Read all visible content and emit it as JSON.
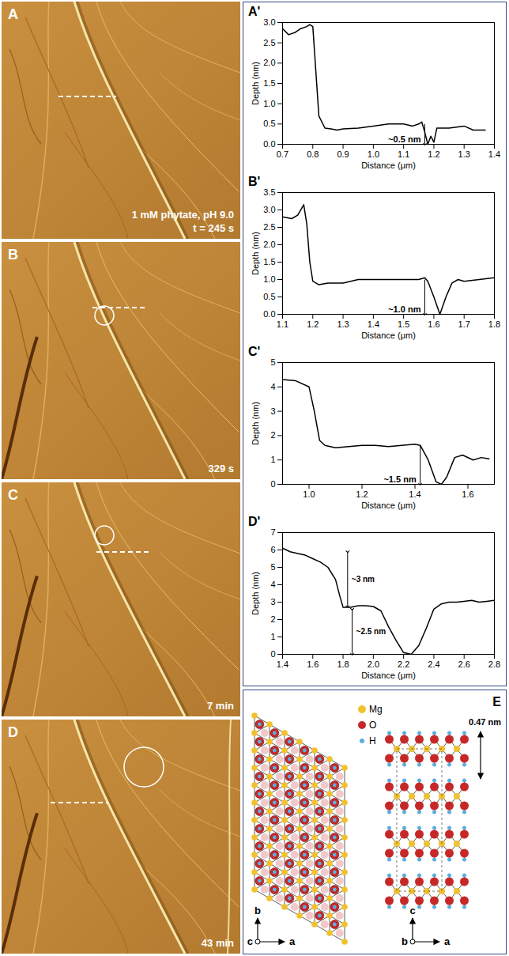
{
  "images": [
    {
      "label": "A",
      "caption": [
        "1 mM phytate, pH 9.0",
        "t = 245 s"
      ]
    },
    {
      "label": "B",
      "caption": [
        "329 s"
      ]
    },
    {
      "label": "C",
      "caption": [
        "7 min"
      ]
    },
    {
      "label": "D",
      "caption": [
        "43 min"
      ]
    }
  ],
  "chart_data": [
    {
      "type": "line",
      "panel": "A'",
      "x_label": "Distance (μm)",
      "y_label": "Depth (nm)",
      "color": "#000000",
      "x": [
        0.7,
        0.72,
        0.74,
        0.76,
        0.78,
        0.79,
        0.8,
        0.81,
        0.82,
        0.84,
        0.86,
        0.88,
        0.9,
        0.95,
        1.0,
        1.05,
        1.1,
        1.13,
        1.15,
        1.16,
        1.17,
        1.18,
        1.19,
        1.2,
        1.21,
        1.25,
        1.3,
        1.33,
        1.37
      ],
      "values": [
        2.85,
        2.7,
        2.75,
        2.85,
        2.9,
        2.95,
        2.9,
        1.8,
        0.7,
        0.4,
        0.38,
        0.35,
        0.38,
        0.4,
        0.45,
        0.5,
        0.5,
        0.45,
        0.5,
        0.55,
        0.3,
        0.0,
        0.2,
        0.05,
        0.4,
        0.4,
        0.45,
        0.35,
        0.35
      ],
      "xlim": [
        0.7,
        1.4
      ],
      "xticks": [
        0.7,
        0.8,
        0.9,
        {
          "value": 1,
          "label": "1.0"
        },
        1.1,
        1.2,
        1.3,
        1.4
      ],
      "ylim": [
        0,
        3
      ],
      "yticks": [
        {
          "value": 0,
          "label": "0.0"
        },
        0.5,
        {
          "value": 1,
          "label": "1.0"
        },
        1.5,
        {
          "value": 2,
          "label": "2.0"
        },
        2.5,
        {
          "value": 3,
          "label": "3.0"
        }
      ],
      "annotations": [
        {
          "text": "~0.5 nm",
          "x": 1.17,
          "y1": 0.5,
          "y2": 0,
          "marker": "arrow"
        }
      ]
    },
    {
      "type": "line",
      "panel": "B'",
      "x_label": "Distance (μm)",
      "y_label": "Depth (nm)",
      "color": "#000000",
      "x": [
        1.1,
        1.13,
        1.15,
        1.17,
        1.18,
        1.19,
        1.2,
        1.22,
        1.25,
        1.3,
        1.35,
        1.4,
        1.45,
        1.5,
        1.55,
        1.57,
        1.58,
        1.6,
        1.62,
        1.64,
        1.66,
        1.68,
        1.7,
        1.75,
        1.8
      ],
      "values": [
        2.8,
        2.75,
        2.85,
        3.15,
        2.6,
        1.5,
        0.95,
        0.85,
        0.9,
        0.9,
        1.0,
        1.0,
        1.0,
        1.0,
        1.0,
        1.05,
        0.95,
        0.5,
        0.0,
        0.5,
        0.9,
        1.0,
        0.95,
        1.0,
        1.05
      ],
      "xlim": [
        1.1,
        1.8
      ],
      "xticks": [
        1.1,
        1.2,
        1.3,
        1.4,
        1.5,
        1.6,
        1.7,
        1.8
      ],
      "ylim": [
        0,
        3.5
      ],
      "yticks": [
        {
          "value": 0,
          "label": "0.0"
        },
        0.5,
        {
          "value": 1,
          "label": "1.0"
        },
        1.5,
        {
          "value": 2,
          "label": "2.0"
        },
        2.5,
        {
          "value": 3,
          "label": "3.0"
        },
        3.5
      ],
      "annotations": [
        {
          "text": "~1.0 nm",
          "x": 1.57,
          "y1": 1.0,
          "y2": 0,
          "marker": "arrow"
        }
      ]
    },
    {
      "type": "line",
      "panel": "C'",
      "x_label": "Distance (μm)",
      "y_label": "Depth (nm)",
      "color": "#000000",
      "x": [
        0.9,
        0.95,
        1.0,
        1.02,
        1.04,
        1.06,
        1.1,
        1.15,
        1.2,
        1.25,
        1.3,
        1.35,
        1.4,
        1.42,
        1.45,
        1.48,
        1.5,
        1.52,
        1.55,
        1.58,
        1.62,
        1.65,
        1.68
      ],
      "values": [
        4.3,
        4.25,
        4.0,
        3.0,
        1.8,
        1.6,
        1.5,
        1.55,
        1.6,
        1.6,
        1.55,
        1.6,
        1.65,
        1.6,
        1.0,
        0.1,
        0.0,
        0.3,
        1.1,
        1.2,
        1.0,
        1.1,
        1.05
      ],
      "xlim": [
        0.9,
        1.7
      ],
      "xticks": [
        {
          "value": 1,
          "label": "1.0"
        },
        1.2,
        1.4,
        1.6
      ],
      "ylim": [
        0,
        5
      ],
      "yticks": [
        0,
        1,
        2,
        3,
        4,
        5
      ],
      "annotations": [
        {
          "text": "~1.5 nm",
          "x": 1.42,
          "y1": 1.6,
          "y2": 0,
          "marker": "arrow"
        }
      ]
    },
    {
      "type": "line",
      "panel": "D'",
      "x_label": "Distance (μm)",
      "y_label": "Depth (nm)",
      "color": "#000000",
      "x": [
        1.4,
        1.45,
        1.5,
        1.55,
        1.6,
        1.65,
        1.7,
        1.75,
        1.78,
        1.8,
        1.85,
        1.9,
        1.95,
        2.0,
        2.05,
        2.1,
        2.15,
        2.2,
        2.25,
        2.3,
        2.35,
        2.4,
        2.45,
        2.5,
        2.55,
        2.6,
        2.65,
        2.7,
        2.75,
        2.8
      ],
      "values": [
        6.1,
        5.9,
        5.8,
        5.7,
        5.5,
        5.3,
        5.0,
        4.3,
        3.3,
        2.7,
        2.7,
        2.8,
        2.8,
        2.75,
        2.5,
        1.6,
        0.8,
        0.1,
        0.0,
        0.5,
        1.5,
        2.6,
        2.9,
        3.0,
        3.0,
        3.05,
        3.1,
        3.0,
        3.05,
        3.1
      ],
      "xlim": [
        1.4,
        2.8
      ],
      "xticks": [
        1.4,
        1.6,
        1.8,
        {
          "value": 2,
          "label": "2.0"
        },
        2.2,
        2.4,
        2.6,
        2.8
      ],
      "ylim": [
        0,
        7
      ],
      "yticks": [
        0,
        1,
        2,
        3,
        4,
        5,
        6,
        7
      ],
      "annotations": [
        {
          "text": "~3 nm",
          "x": 1.83,
          "y1": 5.9,
          "y2": 2.75,
          "marker": "double_arrow"
        },
        {
          "text": "~2.5 nm",
          "x": 1.86,
          "y1": 2.6,
          "y2": 0,
          "marker": "double_arrow"
        }
      ]
    }
  ],
  "diagram": {
    "label": "E",
    "legend": [
      {
        "name": "Mg",
        "color": "#f2c12e"
      },
      {
        "name": "O",
        "color": "#c62828"
      },
      {
        "name": "H",
        "color": "#5aaee0"
      }
    ],
    "spacing": "0.47 nm",
    "axes_top_view": [
      "b",
      "c",
      "a"
    ],
    "axes_side_view": [
      "c",
      "b",
      "a"
    ]
  }
}
